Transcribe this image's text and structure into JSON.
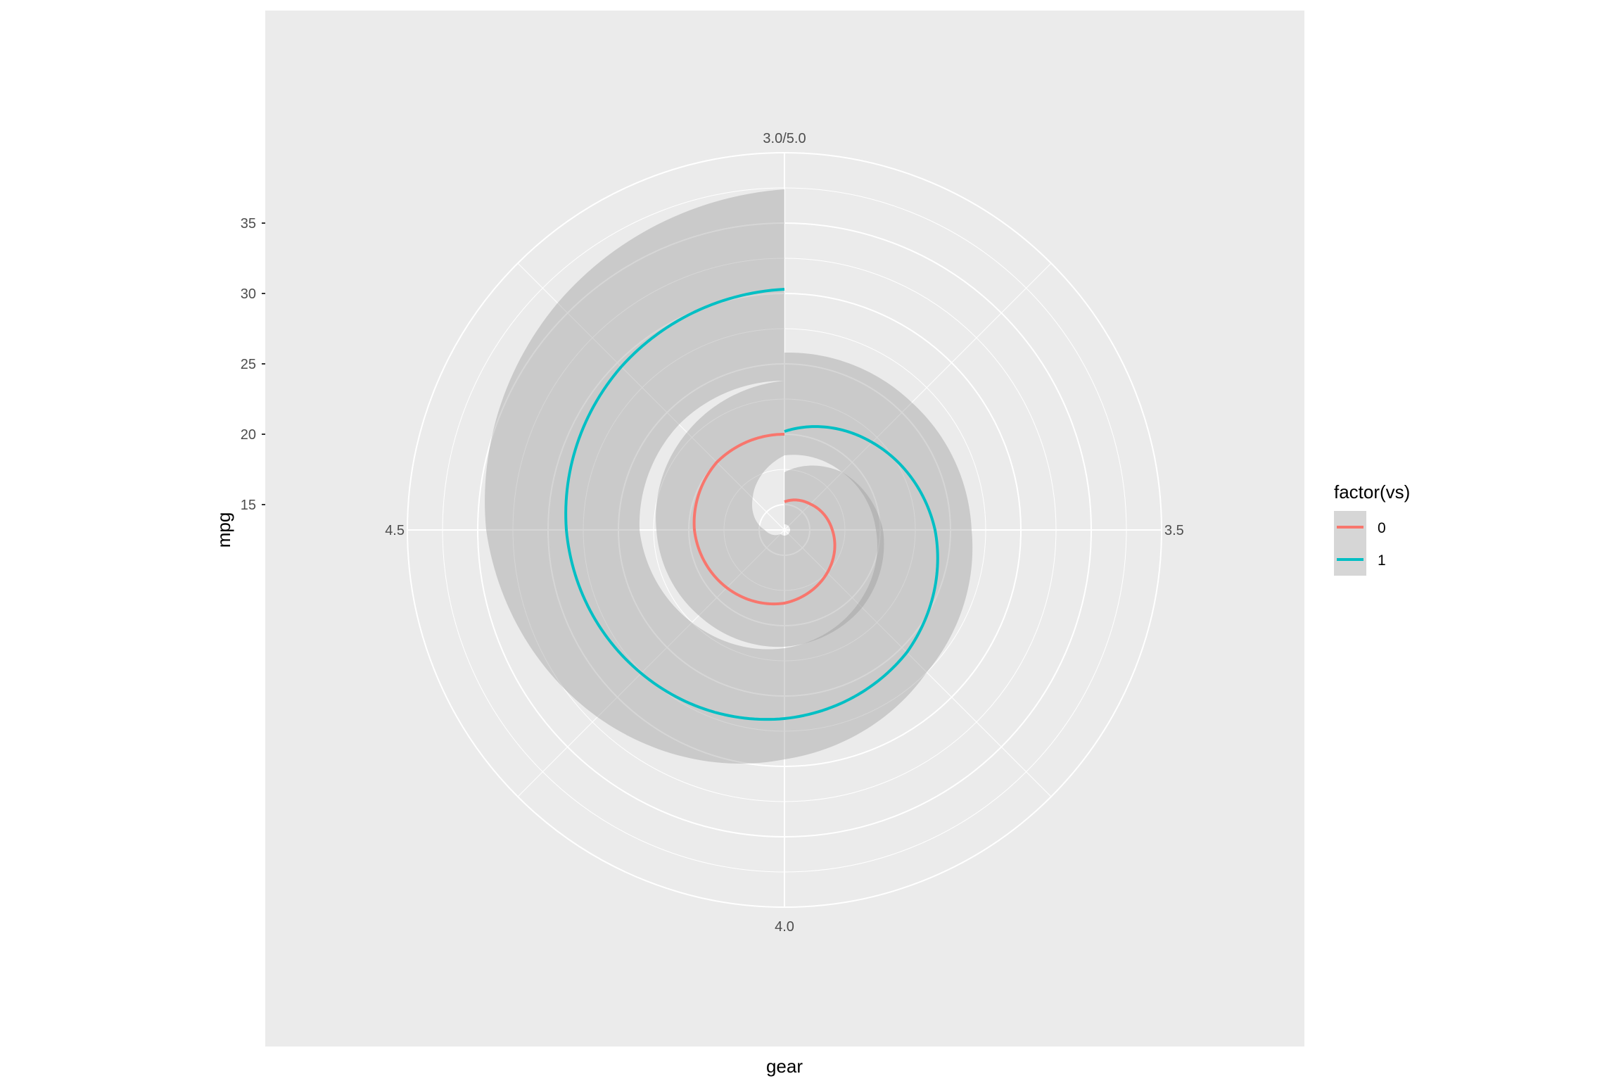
{
  "chart_data": {
    "type": "line",
    "coord": "polar",
    "xlabel": "gear",
    "ylabel": "mpg",
    "theta_ticks": [
      {
        "value": 3.0,
        "label": "3.0/5.0"
      },
      {
        "value": 3.5,
        "label": "3.5"
      },
      {
        "value": 4.0,
        "label": "4.0"
      },
      {
        "value": 4.5,
        "label": "4.5"
      }
    ],
    "theta_range": [
      3.0,
      5.0
    ],
    "r_ticks": [
      15,
      20,
      25,
      30,
      35
    ],
    "r_range": [
      13.2,
      40.0
    ],
    "legend": {
      "title": "factor(vs)",
      "position": "right",
      "entries": [
        "0",
        "1"
      ]
    },
    "series": [
      {
        "name": "0",
        "color": "#F8766D",
        "x": [
          3.0,
          3.25,
          3.5,
          3.75,
          4.0,
          4.25,
          4.5,
          4.75,
          5.0
        ],
        "y": [
          15.2,
          15.8,
          16.6,
          17.5,
          18.4,
          19.0,
          19.6,
          20.0,
          20.0
        ],
        "ribbon_lower": [
          13.6,
          13.6,
          13.6,
          13.6,
          13.6,
          13.6,
          14.6,
          16.4,
          18.5
        ],
        "ribbon_upper": [
          17.3,
          19.0,
          20.2,
          21.0,
          21.5,
          21.8,
          22.3,
          23.0,
          23.8
        ]
      },
      {
        "name": "1",
        "color": "#00BFC4",
        "x": [
          3.0,
          3.25,
          3.5,
          3.75,
          4.0,
          4.25,
          4.5,
          4.75,
          5.0
        ],
        "y": [
          20.2,
          22.0,
          23.9,
          25.5,
          26.6,
          27.6,
          28.7,
          29.6,
          30.3
        ],
        "ribbon_lower": [
          18.5,
          19.0,
          19.7,
          20.6,
          21.6,
          22.5,
          23.5,
          23.8,
          23.8
        ],
        "ribbon_upper": [
          25.8,
          26.0,
          26.5,
          27.5,
          29.5,
          32.0,
          34.4,
          36.0,
          37.4
        ]
      }
    ]
  }
}
